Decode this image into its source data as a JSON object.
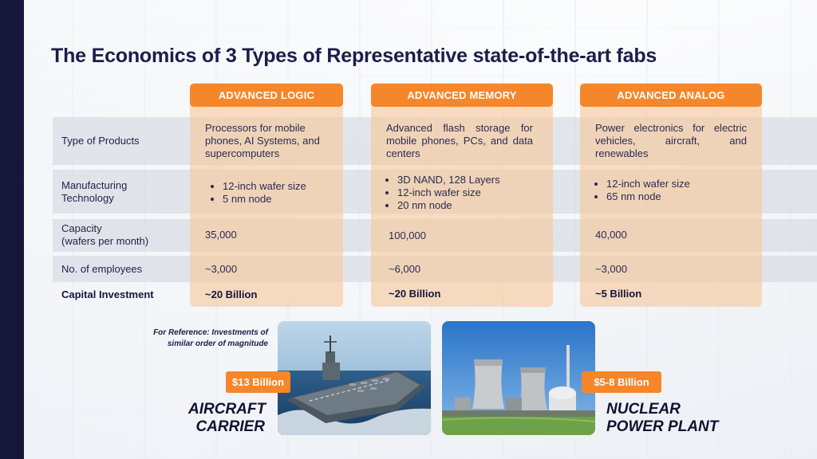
{
  "title": "The Economics of 3 Types of Representative state-of-the-art fabs",
  "row_labels": {
    "products": "Type of Products",
    "technology_l1": "Manufacturing",
    "technology_l2": "Technology",
    "capacity_l1": "Capacity",
    "capacity_l2": "(wafers per month)",
    "employees": "No. of employees",
    "investment": "Capital Investment"
  },
  "columns": [
    {
      "heading": "ADVANCED LOGIC",
      "products": "Processors for mobile phones, AI Systems, and supercomputers",
      "technology": [
        "12-inch wafer size",
        "5 nm node"
      ],
      "capacity": "35,000",
      "employees": "~3,000",
      "investment": "~20 Billion"
    },
    {
      "heading": "ADVANCED MEMORY",
      "products": "Advanced flash storage for mobile phones, PCs, and data centers",
      "technology": [
        "3D NAND, 128 Layers",
        "12-inch wafer size",
        "20 nm node"
      ],
      "capacity": "100,000",
      "employees": "~6,000",
      "investment": "~20 Billion"
    },
    {
      "heading": "ADVANCED ANALOG",
      "products": "Power electronics for electric vehicles, aircraft, and renewables",
      "technology": [
        "12-inch wafer size",
        "65 nm node"
      ],
      "capacity": "40,000",
      "employees": "~3,000",
      "investment": "~5 Billion"
    }
  ],
  "reference": {
    "note_l1": "For Reference: Investments of",
    "note_l2": "similar order of magnitude",
    "carrier": {
      "price": "$13 Billion",
      "label_l1": "AIRCRAFT",
      "label_l2": "CARRIER"
    },
    "nuclear": {
      "price": "$5-8  Billion",
      "label_l1": "NUCLEAR",
      "label_l2": "POWER PLANT"
    }
  },
  "colors": {
    "accent": "#f6862a",
    "navy": "#15163a",
    "column_fill": "#f7c89b"
  }
}
